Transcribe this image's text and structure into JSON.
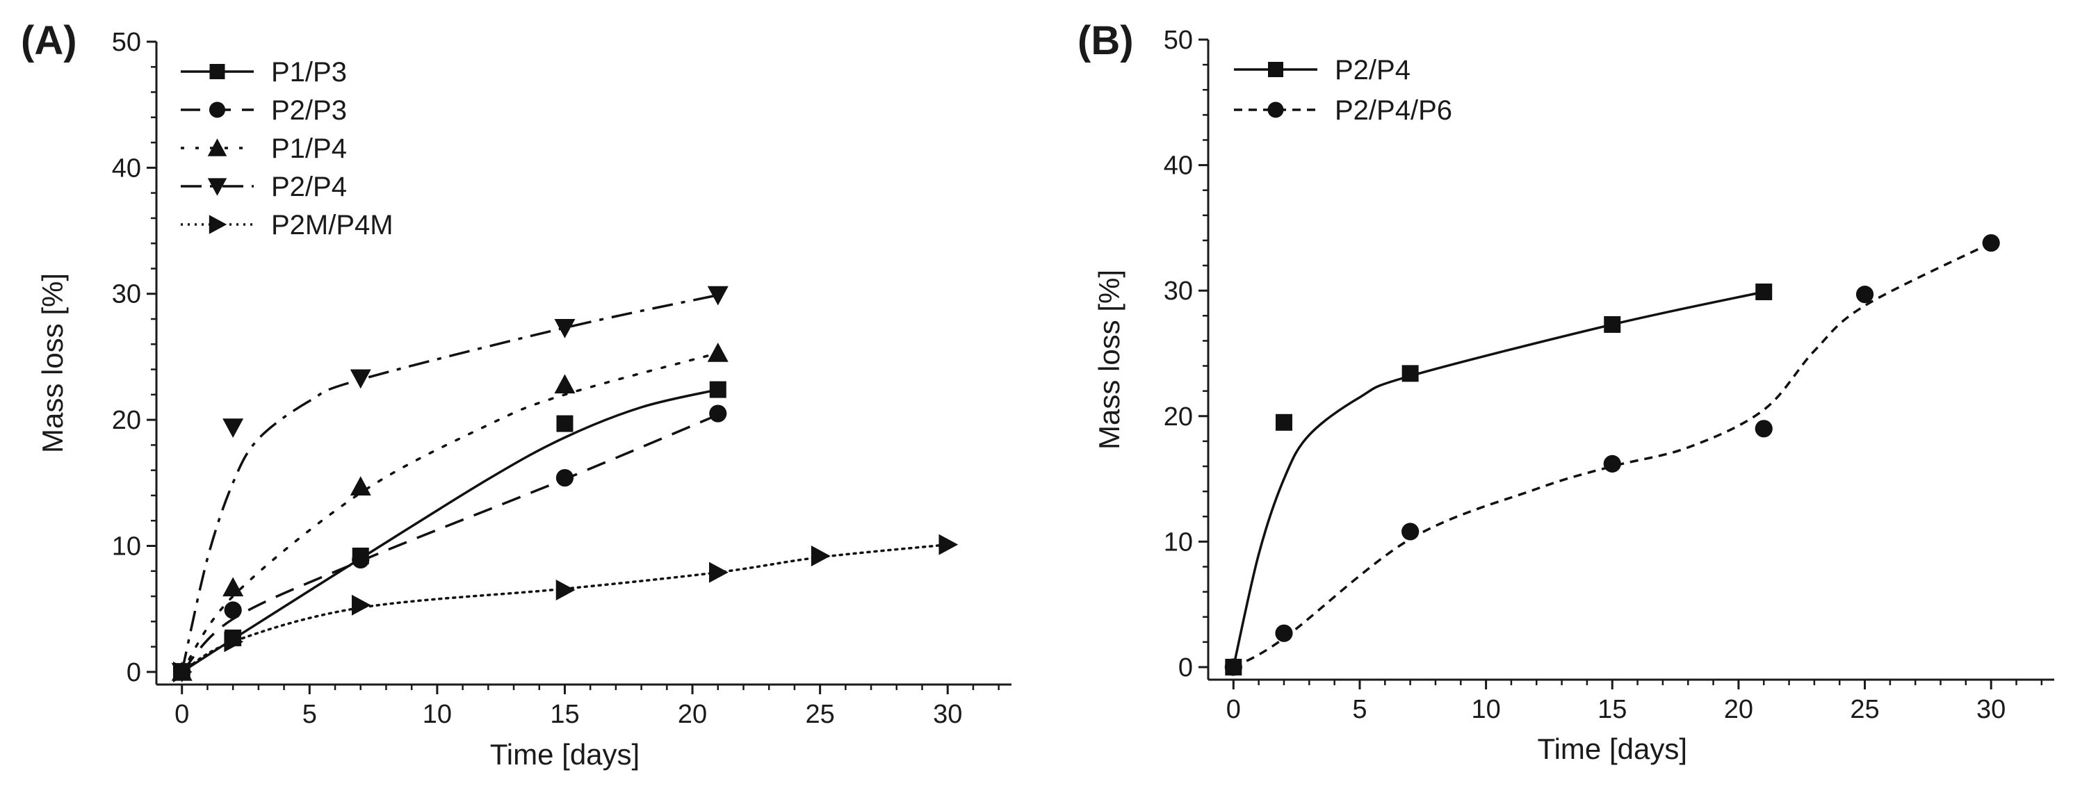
{
  "chart_data": [
    {
      "type": "line",
      "panel_label": "(A)",
      "xlabel": "Time [days]",
      "ylabel": "Mass loss [%]",
      "xlim": [
        -1,
        32.5
      ],
      "ylim": [
        -1,
        50
      ],
      "xticks": [
        0,
        5,
        10,
        15,
        20,
        25,
        30
      ],
      "yticks": [
        0,
        10,
        20,
        30,
        40,
        50
      ],
      "legend_position": "top-left",
      "series": [
        {
          "name": "P1/P3",
          "marker": "square",
          "dash": "solid",
          "x": [
            0,
            2,
            7,
            15,
            21
          ],
          "y": [
            0,
            2.7,
            9.2,
            19.7,
            22.4
          ],
          "fit": [
            [
              0,
              0
            ],
            [
              2,
              2.6
            ],
            [
              7,
              9
            ],
            [
              12,
              15.3
            ],
            [
              15,
              18.6
            ],
            [
              18,
              21
            ],
            [
              21,
              22.4
            ]
          ]
        },
        {
          "name": "P2/P3",
          "marker": "circle",
          "dash": "dash",
          "x": [
            0,
            2,
            7,
            15,
            21
          ],
          "y": [
            0,
            4.9,
            8.9,
            15.4,
            20.5
          ],
          "fit": [
            [
              0,
              0
            ],
            [
              2,
              4.2
            ],
            [
              7,
              8.8
            ],
            [
              15,
              15.3
            ],
            [
              21,
              20.4
            ]
          ]
        },
        {
          "name": "P1/P4",
          "marker": "triangle-up",
          "dash": "dot",
          "x": [
            0,
            2,
            7,
            15,
            21
          ],
          "y": [
            0,
            6.7,
            14.7,
            22.8,
            25.3
          ],
          "fit": [
            [
              0,
              0
            ],
            [
              2,
              6
            ],
            [
              7,
              14.2
            ],
            [
              12,
              19.6
            ],
            [
              15,
              22
            ],
            [
              21,
              25.3
            ]
          ]
        },
        {
          "name": "P2/P4",
          "marker": "triangle-down",
          "dash": "dashdot",
          "x": [
            0,
            2,
            7,
            15,
            21
          ],
          "y": [
            0,
            19.4,
            23.3,
            27.3,
            29.9
          ],
          "fit": [
            [
              0,
              0
            ],
            [
              1,
              9
            ],
            [
              2,
              15
            ],
            [
              3,
              18.5
            ],
            [
              5,
              21.5
            ],
            [
              7,
              23.2
            ],
            [
              15,
              27.3
            ],
            [
              21,
              29.9
            ]
          ]
        },
        {
          "name": "P2M/P4M",
          "marker": "triangle-right",
          "dash": "fine-dot",
          "x": [
            0,
            2,
            7,
            15,
            21,
            25,
            30
          ],
          "y": [
            0,
            2.4,
            5.3,
            6.5,
            7.9,
            9.2,
            10.1
          ],
          "fit": [
            [
              0,
              0
            ],
            [
              2,
              2.4
            ],
            [
              7,
              5.1
            ],
            [
              15,
              6.6
            ],
            [
              21,
              7.9
            ],
            [
              25,
              9.1
            ],
            [
              30,
              10.1
            ]
          ]
        }
      ]
    },
    {
      "type": "line",
      "panel_label": "(B)",
      "xlabel": "Time [days]",
      "ylabel": "Mass loss [%]",
      "xlim": [
        -1,
        32.5
      ],
      "ylim": [
        -1,
        50
      ],
      "xticks": [
        0,
        5,
        10,
        15,
        20,
        25,
        30
      ],
      "yticks": [
        0,
        10,
        20,
        30,
        40,
        50
      ],
      "legend_position": "top-left",
      "series": [
        {
          "name": "P2/P4",
          "marker": "square",
          "dash": "solid",
          "x": [
            0,
            2,
            7,
            15,
            21
          ],
          "y": [
            0,
            19.5,
            23.4,
            27.3,
            29.9
          ],
          "fit": [
            [
              0,
              0
            ],
            [
              1,
              9
            ],
            [
              2,
              15
            ],
            [
              3,
              18.5
            ],
            [
              5,
              21.5
            ],
            [
              7,
              23.2
            ],
            [
              15,
              27.3
            ],
            [
              21,
              29.9
            ]
          ]
        },
        {
          "name": "P2/P4/P6",
          "marker": "circle",
          "dash": "short-dash",
          "x": [
            0,
            2,
            7,
            15,
            21,
            25,
            30
          ],
          "y": [
            0,
            2.7,
            10.8,
            16.2,
            19,
            29.7,
            33.8
          ],
          "fit": [
            [
              0,
              0
            ],
            [
              2,
              2.3
            ],
            [
              7,
              10.2
            ],
            [
              12,
              14.2
            ],
            [
              15,
              16
            ],
            [
              18,
              17.5
            ],
            [
              21,
              20.5
            ],
            [
              23,
              25.2
            ],
            [
              25,
              28.8
            ],
            [
              30,
              33.8
            ]
          ]
        }
      ]
    }
  ]
}
